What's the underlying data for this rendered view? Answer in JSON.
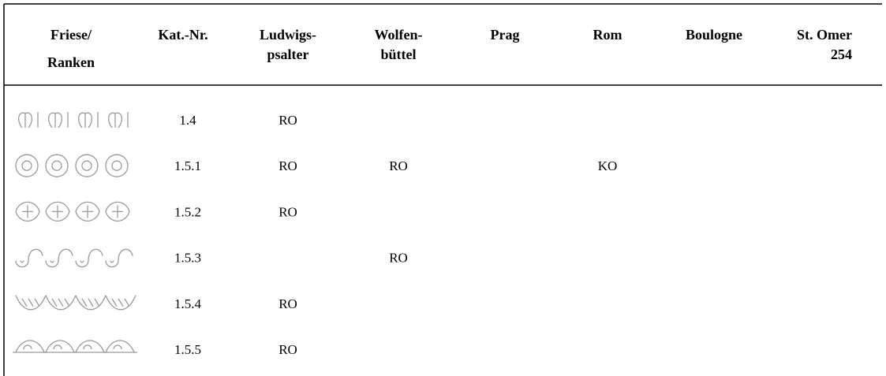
{
  "table": {
    "columns": [
      [
        "Friese/",
        "Ranken"
      ],
      [
        "Kat.-Nr."
      ],
      [
        "Ludwigs-",
        "psalter"
      ],
      [
        "Wolfen-",
        "büttel"
      ],
      [
        "Prag"
      ],
      [
        "Rom"
      ],
      [
        "Boulogne"
      ],
      [
        "St. Omer",
        "254"
      ]
    ],
    "rows": [
      [
        "1.4",
        "RO",
        null,
        null,
        null,
        null,
        null
      ],
      [
        "1.5.1",
        "RO",
        "RO",
        null,
        "KO",
        null,
        null
      ],
      [
        "1.5.2",
        "RO",
        null,
        null,
        null,
        null,
        null
      ],
      [
        "1.5.3",
        null,
        "RO",
        null,
        null,
        null,
        null
      ],
      [
        "1.5.4",
        "RO",
        null,
        null,
        null,
        null,
        null
      ],
      [
        "1.5.5",
        "RO",
        null,
        null,
        null,
        null,
        null
      ]
    ]
  }
}
